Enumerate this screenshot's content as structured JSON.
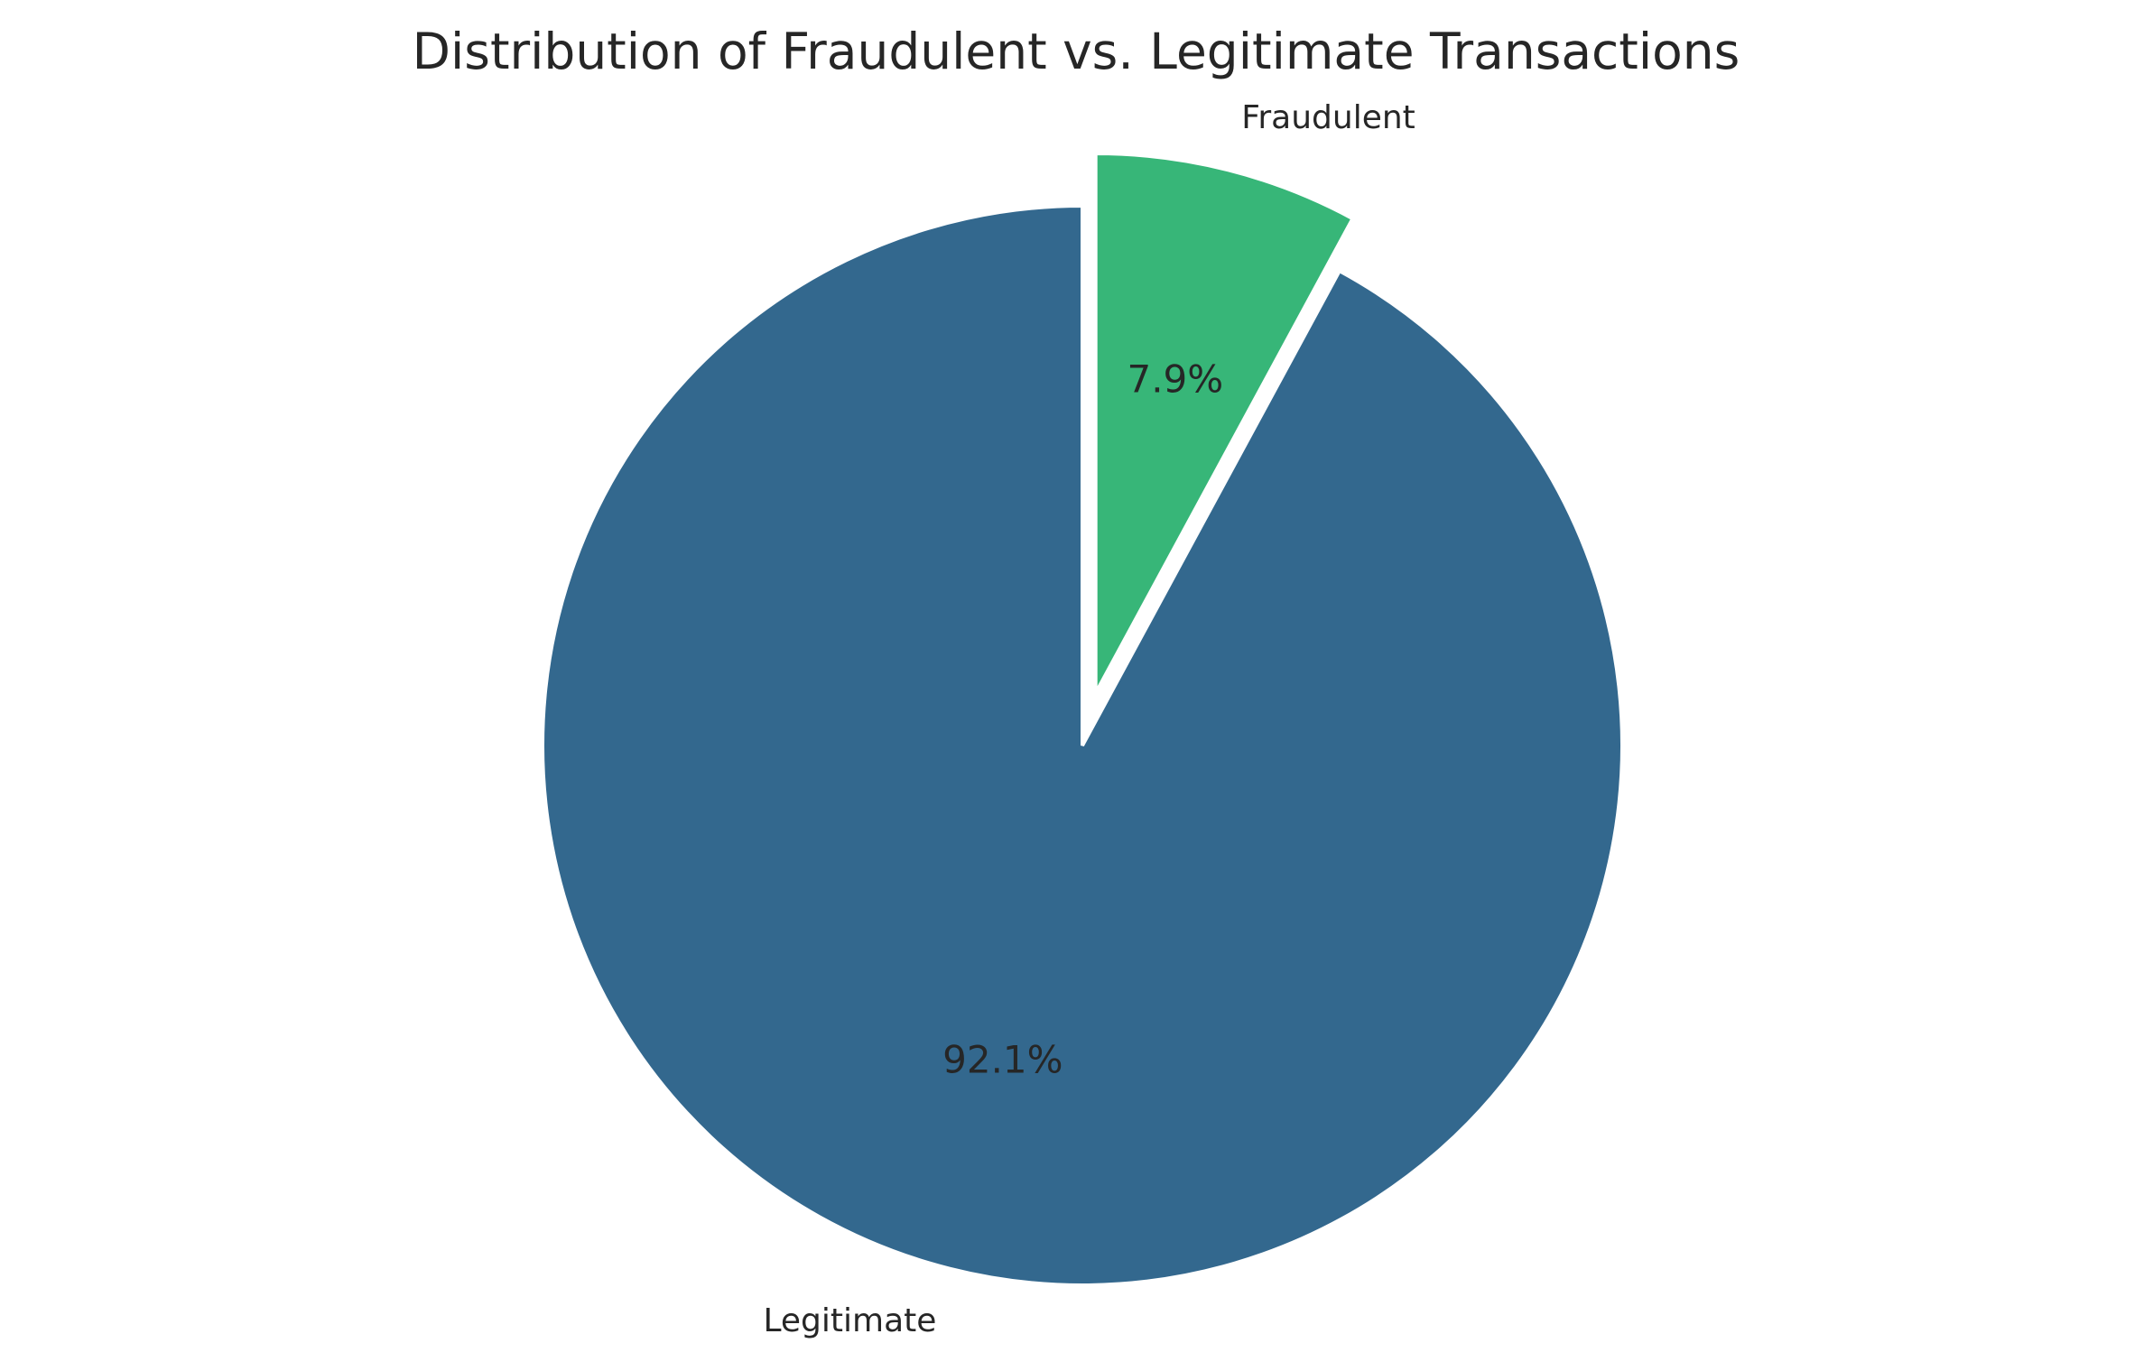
{
  "chart_data": {
    "type": "pie",
    "title": "Distribution of Fraudulent vs. Legitimate Transactions",
    "start_angle": "top (12 o'clock), clockwise",
    "slices": [
      {
        "label": "Fraudulent",
        "value": 7.9,
        "pct_label": "7.9%",
        "color": "#37b678",
        "exploded": true
      },
      {
        "label": "Legitimate",
        "value": 92.1,
        "pct_label": "92.1%",
        "color": "#33688e",
        "exploded": false
      }
    ]
  }
}
